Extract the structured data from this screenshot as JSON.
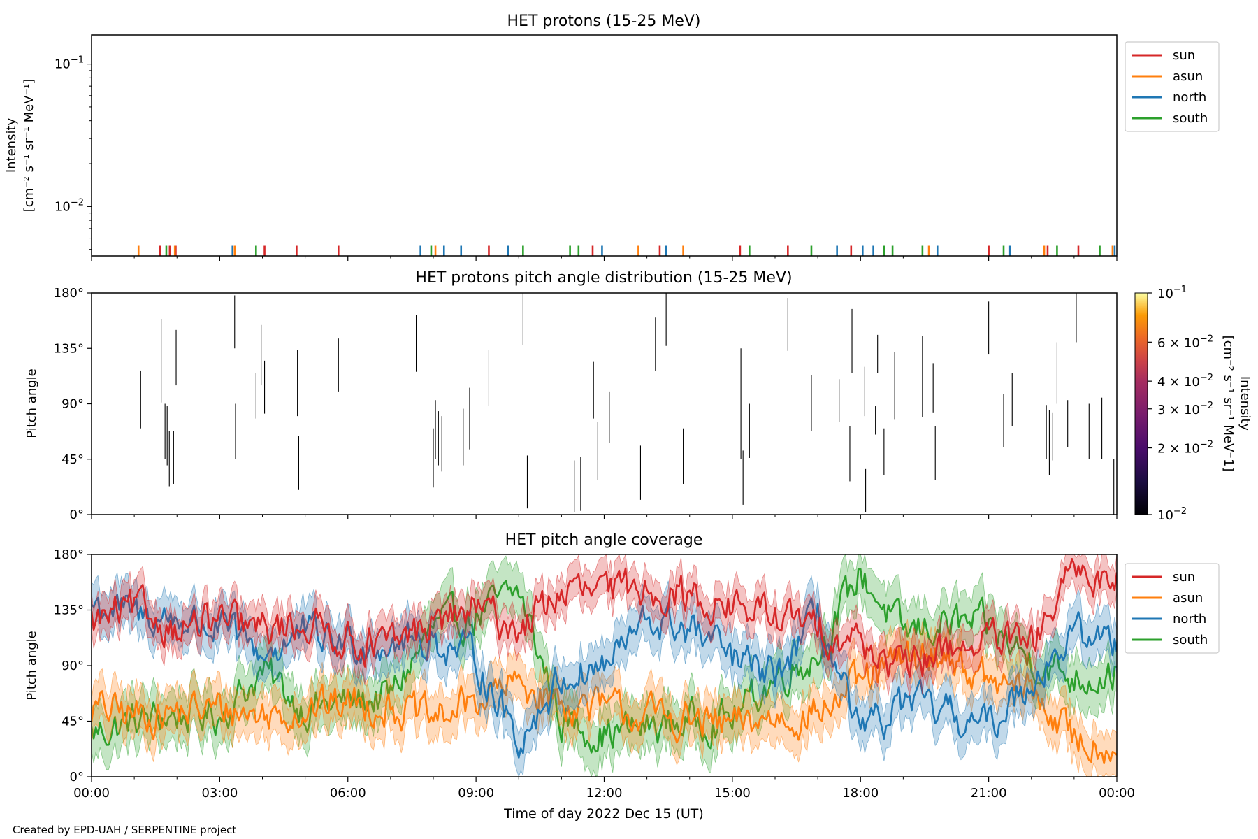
{
  "figure": {
    "xlabel": "Time of day 2022 Dec 15 (UT)",
    "credit": "Created by EPD-UAH / SERPENTINE project",
    "xticks": [
      "00:00",
      "03:00",
      "06:00",
      "09:00",
      "12:00",
      "15:00",
      "18:00",
      "21:00",
      "00:00"
    ]
  },
  "colors": {
    "sun": "#d62728",
    "asun": "#ff7f0e",
    "north": "#1f77b4",
    "south": "#2ca02c"
  },
  "chart_data": [
    {
      "type": "line",
      "title": "HET protons (15-25 MeV)",
      "ylabel_line1": "Intensity",
      "ylabel_line2": "[cm⁻² s⁻¹ sr⁻¹ MeV⁻¹]",
      "yscale": "log",
      "ylim": [
        0.0045,
        0.16
      ],
      "yticks": [
        {
          "value": 0.1,
          "base": "10",
          "exp": "−1"
        },
        {
          "value": 0.01,
          "base": "10",
          "exp": "−2"
        }
      ],
      "xlim_hours": [
        0,
        24
      ],
      "legend": {
        "position": "right",
        "entries": [
          "sun",
          "asun",
          "north",
          "south"
        ]
      },
      "x_unit": "hours since 2022-12-15 00:00 UT",
      "series": [
        {
          "name": "sun",
          "color": "#d62728",
          "x": [
            1.6,
            1.83,
            1.97,
            4.05,
            4.8,
            5.78,
            9.3,
            11.73,
            13.3,
            15.18,
            16.3,
            17.78,
            21.0,
            22.38,
            23.1
          ],
          "y": [
            0.0053,
            0.0053,
            0.0053,
            0.0053,
            0.0053,
            0.0053,
            0.0053,
            0.0053,
            0.0053,
            0.0053,
            0.0053,
            0.0053,
            0.0053,
            0.0053,
            0.0053
          ]
        },
        {
          "name": "asun",
          "color": "#ff7f0e",
          "x": [
            1.1,
            1.95,
            3.35,
            8.05,
            12.8,
            13.85,
            19.6,
            22.3,
            23.9
          ],
          "y": [
            0.0053,
            0.0053,
            0.0053,
            0.0053,
            0.0053,
            0.0053,
            0.0053,
            0.0053,
            0.0053
          ]
        },
        {
          "name": "north",
          "color": "#1f77b4",
          "x": [
            3.3,
            7.7,
            8.25,
            8.65,
            9.75,
            11.95,
            13.45,
            17.45,
            18.05,
            18.3,
            19.8,
            21.5,
            23.95
          ],
          "y": [
            0.0053,
            0.0053,
            0.0053,
            0.0053,
            0.0053,
            0.0053,
            0.0053,
            0.0053,
            0.0053,
            0.0053,
            0.0053,
            0.0053,
            0.0053
          ]
        },
        {
          "name": "south",
          "color": "#2ca02c",
          "x": [
            1.75,
            3.85,
            7.95,
            10.1,
            11.2,
            11.4,
            15.4,
            16.85,
            18.55,
            18.75,
            19.45,
            21.35,
            22.6,
            23.6
          ],
          "y": [
            0.0053,
            0.0053,
            0.0053,
            0.0053,
            0.0053,
            0.0053,
            0.0053,
            0.0053,
            0.0053,
            0.0053,
            0.0053,
            0.0053,
            0.0053,
            0.0053
          ]
        }
      ]
    },
    {
      "type": "heatmap",
      "title": "HET protons pitch angle distribution (15-25 MeV)",
      "ylabel": "Pitch angle",
      "ylim": [
        0,
        180
      ],
      "yticks": [
        "0°",
        "45°",
        "90°",
        "135°",
        "180°"
      ],
      "xlim_hours": [
        0,
        24
      ],
      "colorbar": {
        "label": "Intensity",
        "units": "[cm⁻² s⁻¹ sr⁻¹ MeV⁻1]",
        "scale": "log",
        "range": [
          0.01,
          0.1
        ],
        "ticks": [
          {
            "value": 0.1,
            "base": "10",
            "exp": "−1"
          },
          {
            "value": 0.06,
            "base": "6 × 10",
            "exp": "−2"
          },
          {
            "value": 0.04,
            "base": "4 × 10",
            "exp": "−2"
          },
          {
            "value": 0.03,
            "base": "3 × 10",
            "exp": "−2"
          },
          {
            "value": 0.02,
            "base": "2 × 10",
            "exp": "−2"
          },
          {
            "value": 0.01,
            "base": "10",
            "exp": "−2"
          }
        ],
        "colormap": "inferno"
      },
      "x_unit": "hours since 2022-12-15 00:00 UT",
      "segments": [
        [
          1.15,
          70,
          117
        ],
        [
          1.63,
          91,
          159
        ],
        [
          1.72,
          45,
          90
        ],
        [
          1.77,
          40,
          88
        ],
        [
          1.82,
          23,
          68
        ],
        [
          1.92,
          25,
          68
        ],
        [
          1.98,
          105,
          150
        ],
        [
          3.35,
          135,
          178
        ],
        [
          3.37,
          45,
          90
        ],
        [
          3.85,
          78,
          115
        ],
        [
          3.97,
          105,
          154
        ],
        [
          4.05,
          82,
          125
        ],
        [
          4.82,
          80,
          134
        ],
        [
          4.85,
          20,
          64
        ],
        [
          5.78,
          100,
          143
        ],
        [
          7.6,
          116,
          162
        ],
        [
          8.0,
          22,
          70
        ],
        [
          8.05,
          45,
          93
        ],
        [
          8.12,
          40,
          84
        ],
        [
          8.2,
          35,
          80
        ],
        [
          8.7,
          40,
          86
        ],
        [
          8.85,
          53,
          103
        ],
        [
          9.3,
          88,
          134
        ],
        [
          10.1,
          138,
          180
        ],
        [
          10.2,
          5,
          48
        ],
        [
          11.3,
          2,
          44
        ],
        [
          11.45,
          3,
          47
        ],
        [
          11.75,
          78,
          124
        ],
        [
          11.85,
          28,
          75
        ],
        [
          12.12,
          58,
          100
        ],
        [
          12.85,
          12,
          56
        ],
        [
          13.2,
          117,
          160
        ],
        [
          13.45,
          137,
          180
        ],
        [
          13.85,
          25,
          70
        ],
        [
          15.2,
          45,
          135
        ],
        [
          15.25,
          8,
          52
        ],
        [
          15.4,
          46,
          90
        ],
        [
          16.3,
          133,
          176
        ],
        [
          16.85,
          68,
          113
        ],
        [
          17.5,
          75,
          110
        ],
        [
          17.75,
          27,
          72
        ],
        [
          17.8,
          115,
          167
        ],
        [
          18.1,
          80,
          120
        ],
        [
          18.12,
          2,
          37
        ],
        [
          18.35,
          65,
          88
        ],
        [
          18.4,
          115,
          146
        ],
        [
          18.55,
          32,
          70
        ],
        [
          18.8,
          77,
          132
        ],
        [
          19.45,
          79,
          145
        ],
        [
          19.7,
          83,
          123
        ],
        [
          19.75,
          28,
          72
        ],
        [
          21.0,
          130,
          173
        ],
        [
          21.35,
          55,
          98
        ],
        [
          21.55,
          72,
          115
        ],
        [
          22.35,
          45,
          89
        ],
        [
          22.42,
          32,
          85
        ],
        [
          22.5,
          44,
          83
        ],
        [
          22.6,
          90,
          140
        ],
        [
          22.85,
          55,
          93
        ],
        [
          23.05,
          140,
          180
        ],
        [
          23.35,
          45,
          90
        ],
        [
          23.65,
          45,
          95
        ],
        [
          23.93,
          0,
          45
        ]
      ]
    },
    {
      "type": "area",
      "title": "HET pitch angle coverage",
      "ylabel": "Pitch angle",
      "ylim": [
        0,
        180
      ],
      "yticks": [
        "0°",
        "45°",
        "90°",
        "135°",
        "180°"
      ],
      "xlim_hours": [
        0,
        24
      ],
      "xlabel": "Time of day 2022 Dec 15 (UT)",
      "legend": {
        "position": "right",
        "entries": [
          "sun",
          "asun",
          "north",
          "south"
        ]
      },
      "x_unit": "hours since 2022-12-15 00:00 UT",
      "series": [
        {
          "name": "sun",
          "color": "#d62728",
          "x": [
            0,
            1,
            2,
            3,
            4,
            5,
            6,
            7,
            8,
            9,
            10,
            11,
            12,
            13,
            14,
            15,
            16,
            17,
            18,
            19,
            20,
            21,
            22,
            23,
            24
          ],
          "y": [
            125,
            135,
            120,
            125,
            118,
            125,
            112,
            105,
            125,
            135,
            120,
            150,
            148,
            155,
            145,
            138,
            130,
            120,
            110,
            85,
            105,
            110,
            105,
            165,
            160
          ],
          "band": 15
        },
        {
          "name": "asun",
          "color": "#ff7f0e",
          "x": [
            0,
            1,
            2,
            3,
            4,
            5,
            6,
            7,
            8,
            9,
            10,
            11,
            12,
            13,
            14,
            15,
            16,
            17,
            18,
            19,
            20,
            21,
            22,
            23,
            24
          ],
          "y": [
            55,
            50,
            52,
            55,
            50,
            55,
            60,
            58,
            45,
            62,
            75,
            60,
            55,
            50,
            45,
            40,
            48,
            52,
            75,
            95,
            100,
            75,
            70,
            30,
            25
          ],
          "band": 18
        },
        {
          "name": "north",
          "color": "#1f77b4",
          "x": [
            0,
            1,
            2,
            3,
            4,
            5,
            6,
            7,
            8,
            9,
            10,
            11,
            12,
            13,
            14,
            15,
            16,
            17,
            18,
            19,
            20,
            21,
            22,
            23,
            24
          ],
          "y": [
            140,
            130,
            128,
            120,
            100,
            115,
            108,
            110,
            110,
            95,
            30,
            80,
            90,
            125,
            120,
            95,
            80,
            130,
            30,
            60,
            50,
            40,
            80,
            115,
            110
          ],
          "band": 18
        },
        {
          "name": "south",
          "color": "#2ca02c",
          "x": [
            0,
            1,
            2,
            3,
            4,
            5,
            6,
            7,
            8,
            9,
            10,
            11,
            12,
            13,
            14,
            15,
            16,
            17,
            18,
            19,
            20,
            21,
            22,
            23,
            24
          ],
          "y": [
            35,
            45,
            50,
            50,
            85,
            55,
            60,
            65,
            120,
            130,
            150,
            45,
            35,
            40,
            45,
            48,
            80,
            100,
            165,
            115,
            125,
            120,
            95,
            80,
            85
          ],
          "band": 20
        }
      ]
    }
  ]
}
